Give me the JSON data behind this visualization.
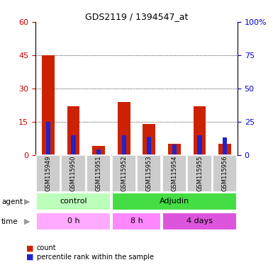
{
  "title": "GDS2119 / 1394547_at",
  "samples": [
    "GSM115949",
    "GSM115950",
    "GSM115951",
    "GSM115952",
    "GSM115953",
    "GSM115954",
    "GSM115955",
    "GSM115956"
  ],
  "count_values": [
    45,
    22,
    4,
    24,
    14,
    5,
    22,
    5
  ],
  "percentile_values": [
    25,
    15,
    4,
    15,
    14,
    8,
    15,
    13
  ],
  "left_ylim": [
    0,
    60
  ],
  "left_yticks": [
    0,
    15,
    30,
    45,
    60
  ],
  "right_ylim": [
    0,
    100
  ],
  "right_yticks": [
    0,
    25,
    50,
    75,
    100
  ],
  "left_tick_color": "#cc0000",
  "right_tick_color": "#0000cc",
  "count_color": "#cc2200",
  "percentile_color": "#2222cc",
  "grid_color": "#000000",
  "agent_row": [
    {
      "label": "control",
      "span": [
        0,
        3
      ],
      "color": "#bbffbb"
    },
    {
      "label": "Adjudin",
      "span": [
        3,
        8
      ],
      "color": "#44dd44"
    }
  ],
  "time_row": [
    {
      "label": "0 h",
      "span": [
        0,
        3
      ],
      "color": "#ffaaff"
    },
    {
      "label": "8 h",
      "span": [
        3,
        5
      ],
      "color": "#ff88ff"
    },
    {
      "label": "4 days",
      "span": [
        5,
        8
      ],
      "color": "#dd55dd"
    }
  ],
  "legend_count_label": "count",
  "legend_pct_label": "percentile rank within the sample",
  "sample_bg_color": "#cccccc",
  "arrow_color": "#999999",
  "fig_width": 3.85,
  "fig_height": 3.84,
  "dpi": 100
}
